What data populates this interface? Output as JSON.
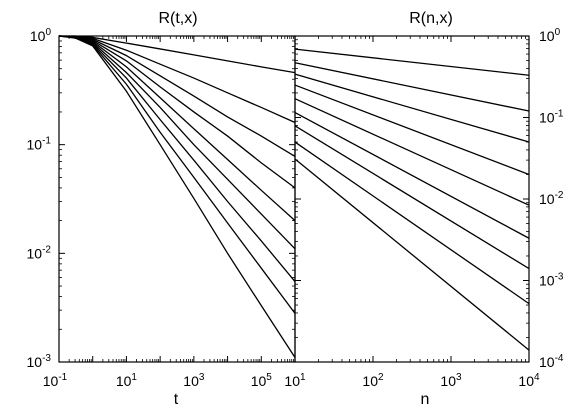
{
  "chart_data": [
    {
      "type": "line",
      "title": "R(t,x)",
      "xlabel": "t",
      "ylabel": "",
      "xscale": "log",
      "yscale": "log",
      "xlim": [
        0.1,
        1000000
      ],
      "ylim": [
        0.001,
        1
      ],
      "xticks": [
        {
          "base": "10",
          "exp": "-1"
        },
        {
          "base": "10",
          "exp": "1"
        },
        {
          "base": "10",
          "exp": "3"
        },
        {
          "base": "10",
          "exp": "5"
        }
      ],
      "xtick_values": [
        0.1,
        10,
        1000,
        100000
      ],
      "yticks": [
        {
          "base": "10",
          "exp": "-3"
        },
        {
          "base": "10",
          "exp": "-2"
        },
        {
          "base": "10",
          "exp": "-1"
        },
        {
          "base": "10",
          "exp": "0"
        }
      ],
      "ytick_values": [
        0.001,
        0.01,
        0.1,
        1
      ],
      "y_axis_side": "left",
      "series": [
        {
          "x": [
            0.1,
            0.3,
            1,
            10,
            100,
            1000,
            10000,
            100000,
            1000000
          ],
          "y": [
            1,
            1,
            0.97,
            0.86,
            0.76,
            0.67,
            0.59,
            0.52,
            0.46
          ]
        },
        {
          "x": [
            0.1,
            0.3,
            1,
            10,
            100,
            1000,
            10000,
            100000,
            1000000
          ],
          "y": [
            1,
            0.99,
            0.95,
            0.74,
            0.55,
            0.41,
            0.3,
            0.22,
            0.16
          ]
        },
        {
          "x": [
            0.1,
            0.3,
            1,
            10,
            100,
            1000,
            10000,
            100000,
            1000000
          ],
          "y": [
            1,
            0.99,
            0.93,
            0.66,
            0.43,
            0.28,
            0.18,
            0.12,
            0.078
          ]
        },
        {
          "x": [
            0.1,
            0.3,
            1,
            10,
            100,
            1000,
            10000,
            100000,
            1000000
          ],
          "y": [
            1,
            0.98,
            0.91,
            0.59,
            0.34,
            0.2,
            0.12,
            0.068,
            0.04
          ]
        },
        {
          "x": [
            0.1,
            0.3,
            1,
            10,
            100,
            1000,
            10000,
            100000,
            1000000
          ],
          "y": [
            1,
            0.98,
            0.89,
            0.52,
            0.27,
            0.14,
            0.073,
            0.038,
            0.02
          ]
        },
        {
          "x": [
            0.1,
            0.3,
            1,
            10,
            100,
            1000,
            10000,
            100000,
            1000000
          ],
          "y": [
            1,
            0.97,
            0.87,
            0.46,
            0.22,
            0.1,
            0.048,
            0.023,
            0.011
          ]
        },
        {
          "x": [
            0.1,
            0.3,
            1,
            10,
            100,
            1000,
            10000,
            100000,
            1000000
          ],
          "y": [
            1,
            0.97,
            0.85,
            0.41,
            0.17,
            0.072,
            0.03,
            0.013,
            0.0055
          ]
        },
        {
          "x": [
            0.1,
            0.3,
            1,
            10,
            100,
            1000,
            10000,
            100000,
            1000000
          ],
          "y": [
            1,
            0.96,
            0.83,
            0.36,
            0.13,
            0.05,
            0.019,
            0.0073,
            0.0028
          ]
        },
        {
          "x": [
            0.1,
            0.3,
            1,
            10,
            100,
            1000,
            10000,
            100000,
            1000000
          ],
          "y": [
            1,
            0.96,
            0.81,
            0.31,
            0.1,
            0.032,
            0.01,
            0.0033,
            0.0011
          ]
        }
      ]
    },
    {
      "type": "line",
      "title": "R(n,x)",
      "xlabel": "n",
      "ylabel": "",
      "xscale": "log",
      "yscale": "log",
      "xlim": [
        10,
        10000
      ],
      "ylim": [
        0.0001,
        1
      ],
      "xticks": [
        {
          "base": "10",
          "exp": "1"
        },
        {
          "base": "10",
          "exp": "2"
        },
        {
          "base": "10",
          "exp": "3"
        },
        {
          "base": "10",
          "exp": "4"
        }
      ],
      "xtick_values": [
        10,
        100,
        1000,
        10000
      ],
      "yticks": [
        {
          "base": "10",
          "exp": "-4"
        },
        {
          "base": "10",
          "exp": "-3"
        },
        {
          "base": "10",
          "exp": "-2"
        },
        {
          "base": "10",
          "exp": "-1"
        },
        {
          "base": "10",
          "exp": "0"
        }
      ],
      "ytick_values": [
        0.0001,
        0.001,
        0.01,
        0.1,
        1
      ],
      "y_axis_side": "right",
      "series": [
        {
          "x": [
            10,
            10000
          ],
          "y": [
            0.69,
            0.33
          ]
        },
        {
          "x": [
            10,
            10000
          ],
          "y": [
            0.47,
            0.12
          ]
        },
        {
          "x": [
            10,
            10000
          ],
          "y": [
            0.34,
            0.05
          ]
        },
        {
          "x": [
            10,
            10000
          ],
          "y": [
            0.25,
            0.02
          ]
        },
        {
          "x": [
            10,
            10000
          ],
          "y": [
            0.17,
            0.0084
          ]
        },
        {
          "x": [
            10,
            10000
          ],
          "y": [
            0.115,
            0.0033
          ]
        },
        {
          "x": [
            10,
            10000
          ],
          "y": [
            0.079,
            0.0014
          ]
        },
        {
          "x": [
            10,
            10000
          ],
          "y": [
            0.05,
            0.00052
          ]
        },
        {
          "x": [
            10,
            10000
          ],
          "y": [
            0.031,
            0.00014
          ]
        }
      ]
    }
  ]
}
